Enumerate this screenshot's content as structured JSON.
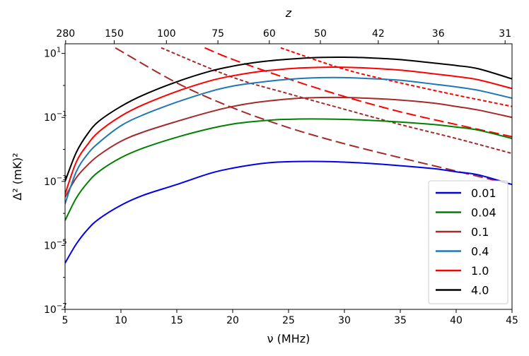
{
  "chart_data": {
    "type": "line",
    "xlabel": "ν (MHz)",
    "ylabel": "Δ² (mK)²",
    "top_xlabel": "z",
    "xlim": [
      5,
      45
    ],
    "ylim": [
      1e-07,
      20
    ],
    "yscale": "log",
    "grid": false,
    "legend_position": "lower-right",
    "x_ticks": [
      "5",
      "10",
      "15",
      "20",
      "25",
      "30",
      "35",
      "40",
      "45"
    ],
    "y_ticks": [
      {
        "mantissa": "10",
        "exp": "1",
        "value": 10
      },
      {
        "mantissa": "10",
        "exp": "−1",
        "value": 0.1
      },
      {
        "mantissa": "10",
        "exp": "−3",
        "value": 0.001
      },
      {
        "mantissa": "10",
        "exp": "−5",
        "value": 1e-05
      },
      {
        "mantissa": "10",
        "exp": "−7",
        "value": 1e-07
      }
    ],
    "top_ticks": [
      {
        "label": "280",
        "nu": 5.05
      },
      {
        "label": "150",
        "nu": 9.4
      },
      {
        "label": "100",
        "nu": 14.07
      },
      {
        "label": "75",
        "nu": 18.68
      },
      {
        "label": "60",
        "nu": 23.28
      },
      {
        "label": "50",
        "nu": 27.85
      },
      {
        "label": "42",
        "nu": 33.03
      },
      {
        "label": "36",
        "nu": 38.4
      },
      {
        "label": "31",
        "nu": 44.38
      }
    ],
    "x": [
      5,
      6,
      7,
      8,
      10,
      12,
      15,
      18,
      20,
      22,
      24,
      26,
      28,
      30,
      32,
      35,
      38,
      40,
      42,
      45
    ],
    "series": [
      {
        "name": "0.01",
        "color": "#0000ee",
        "style": "solid",
        "values": [
          2.8e-06,
          1.1e-05,
          3.1e-05,
          6.6e-05,
          0.00018,
          0.00037,
          0.0008,
          0.0018,
          0.0026,
          0.0034,
          0.004,
          0.0042,
          0.0042,
          0.004,
          0.0037,
          0.0031,
          0.0025,
          0.002,
          0.0016,
          0.0008
        ]
      },
      {
        "name": "0.04",
        "color": "#008000",
        "style": "solid",
        "values": [
          6e-05,
          0.0003,
          0.0009,
          0.002,
          0.0055,
          0.011,
          0.024,
          0.045,
          0.062,
          0.075,
          0.085,
          0.089,
          0.089,
          0.087,
          0.082,
          0.072,
          0.06,
          0.05,
          0.04,
          0.022
        ]
      },
      {
        "name": "0.1",
        "color": "#a52a2a",
        "style": "solid",
        "values": [
          0.00032,
          0.0013,
          0.0032,
          0.0065,
          0.018,
          0.035,
          0.075,
          0.15,
          0.22,
          0.29,
          0.35,
          0.4,
          0.42,
          0.42,
          0.4,
          0.35,
          0.28,
          0.22,
          0.17,
          0.1
        ]
      },
      {
        "name": "0.4",
        "color": "#1f77b4",
        "style": "solid",
        "values": [
          0.0002,
          0.002,
          0.007,
          0.016,
          0.055,
          0.12,
          0.3,
          0.65,
          0.95,
          1.2,
          1.45,
          1.65,
          1.75,
          1.75,
          1.65,
          1.45,
          1.1,
          0.9,
          0.7,
          0.4
        ]
      },
      {
        "name": "1.0",
        "color": "#ff0000",
        "style": "solid",
        "values": [
          0.0004,
          0.004,
          0.014,
          0.035,
          0.11,
          0.25,
          0.65,
          1.4,
          2.0,
          2.6,
          3.1,
          3.5,
          3.7,
          3.7,
          3.5,
          3.0,
          2.3,
          1.9,
          1.5,
          0.8
        ]
      },
      {
        "name": "4.0",
        "color": "#000000",
        "style": "solid",
        "values": [
          0.001,
          0.008,
          0.03,
          0.075,
          0.22,
          0.5,
          1.3,
          2.8,
          4.0,
          5.2,
          6.2,
          7.0,
          7.5,
          7.6,
          7.3,
          6.4,
          5.0,
          4.2,
          3.3,
          1.6
        ]
      }
    ],
    "reference_lines": [
      {
        "color": "#a52a2a",
        "style": "long-dash",
        "x": [
          9.5,
          15,
          20,
          25,
          30,
          35,
          40,
          45
        ],
        "values": [
          15,
          1.2,
          0.2,
          0.048,
          0.015,
          0.0055,
          0.0021,
          0.0008
        ]
      },
      {
        "color": "#a52a2a",
        "style": "short-dash",
        "x": [
          13.6,
          20,
          25,
          30,
          35,
          40,
          45
        ],
        "values": [
          15,
          1.8,
          0.55,
          0.18,
          0.06,
          0.022,
          0.0075
        ]
      },
      {
        "color": "#ff0000",
        "style": "long-dash",
        "x": [
          17.5,
          20,
          25,
          30,
          35,
          40,
          45
        ],
        "values": [
          15,
          6.5,
          1.6,
          0.45,
          0.15,
          0.06,
          0.025
        ]
      },
      {
        "color": "#ff0000",
        "style": "short-dash",
        "x": [
          24.3,
          30,
          35,
          40,
          45
        ],
        "values": [
          15,
          3.2,
          1.2,
          0.5,
          0.22
        ]
      }
    ]
  }
}
